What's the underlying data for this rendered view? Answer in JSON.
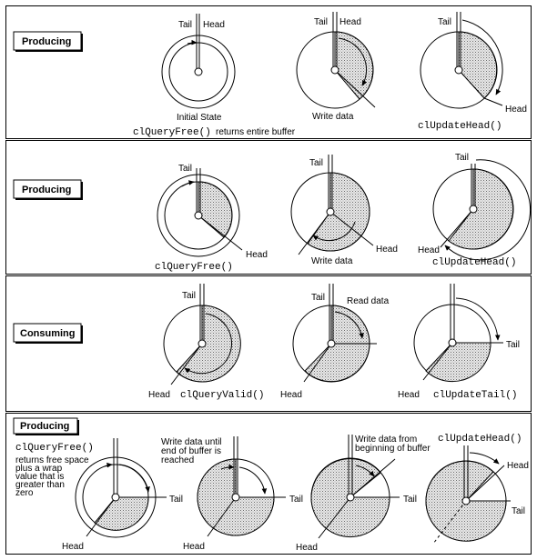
{
  "panels": [
    {
      "title": "Producing",
      "labels": {
        "d1_tail": "Tail",
        "d1_head": "Head",
        "d1_caption": "Initial State",
        "d2_tail": "Tail",
        "d2_head": "Head",
        "d2_caption": "Write data",
        "d3_tail": "Tail",
        "d3_head": "Head",
        "d3_fn": "clUpdateHead()"
      },
      "footer_fn": "clQueryFree()",
      "footer_text": "returns entire buffer"
    },
    {
      "title": "Producing",
      "labels": {
        "d1_tail": "Tail",
        "d1_head": "Head",
        "d1_fn": "clQueryFree()",
        "d2_tail": "Tail",
        "d2_head": "Head",
        "d2_caption": "Write data",
        "d3_tail": "Tail",
        "d3_head": "Head",
        "d3_fn": "clUpdateHead()"
      }
    },
    {
      "title": "Consuming",
      "labels": {
        "d1_tail": "Tail",
        "d1_head": "Head",
        "d1_fn": "clQueryValid()",
        "d2_tail": "Tail",
        "d2_head": "Head",
        "d2_caption": "Read data",
        "d3_tail": "Tail",
        "d3_head": "Head",
        "d3_fn": "clUpdateTail()"
      }
    },
    {
      "title": "Producing",
      "labels": {
        "d1_fn": "clQueryFree()",
        "d1_note": [
          "returns free space",
          "plus a wrap",
          "value that is",
          "greater than",
          "zero"
        ],
        "d1_tail": "Tail",
        "d1_head": "Head",
        "d2_note": [
          "Write data until",
          "end of buffer is",
          "reached"
        ],
        "d2_tail": "Tail",
        "d2_head": "Head",
        "d3_note": [
          "Write data from",
          "beginning of buffer"
        ],
        "d3_tail": "Tail",
        "d3_head": "Head",
        "d4_fn": "clUpdateHead()",
        "d4_head": "Head",
        "d4_tail": "Tail"
      }
    }
  ]
}
